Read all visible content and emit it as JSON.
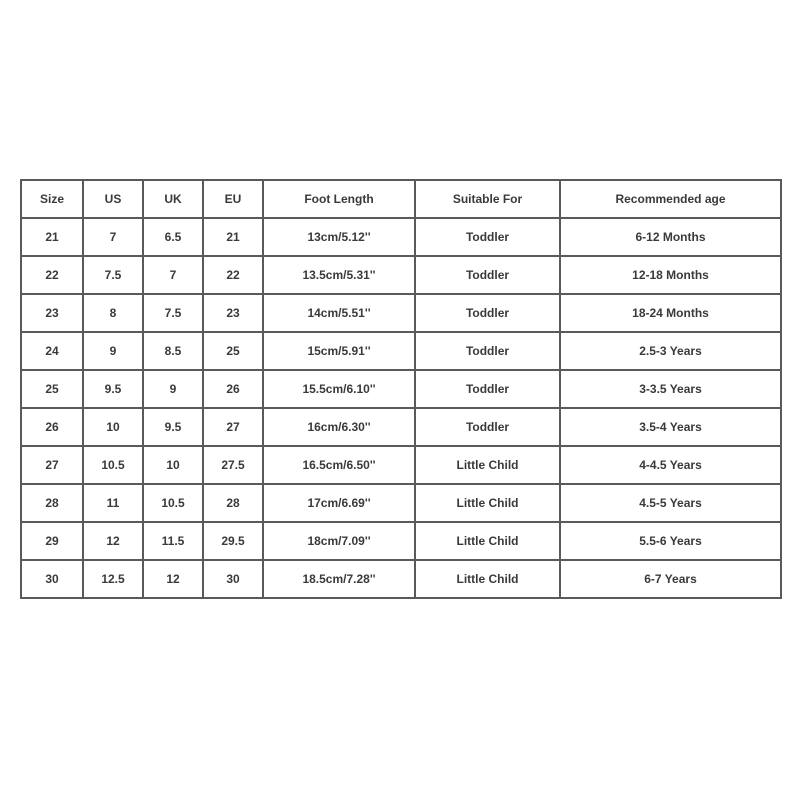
{
  "table": {
    "headers": [
      "Size",
      "US",
      "UK",
      "EU",
      "Foot Length",
      "Suitable For",
      "Recommended age"
    ],
    "rows": [
      [
        "21",
        "7",
        "6.5",
        "21",
        "13cm/5.12''",
        "Toddler",
        "6-12 Months"
      ],
      [
        "22",
        "7.5",
        "7",
        "22",
        "13.5cm/5.31''",
        "Toddler",
        "12-18 Months"
      ],
      [
        "23",
        "8",
        "7.5",
        "23",
        "14cm/5.51''",
        "Toddler",
        "18-24 Months"
      ],
      [
        "24",
        "9",
        "8.5",
        "25",
        "15cm/5.91''",
        "Toddler",
        "2.5-3 Years"
      ],
      [
        "25",
        "9.5",
        "9",
        "26",
        "15.5cm/6.10''",
        "Toddler",
        "3-3.5 Years"
      ],
      [
        "26",
        "10",
        "9.5",
        "27",
        "16cm/6.30''",
        "Toddler",
        "3.5-4 Years"
      ],
      [
        "27",
        "10.5",
        "10",
        "27.5",
        "16.5cm/6.50''",
        "Little Child",
        "4-4.5 Years"
      ],
      [
        "28",
        "11",
        "10.5",
        "28",
        "17cm/6.69''",
        "Little Child",
        "4.5-5 Years"
      ],
      [
        "29",
        "12",
        "11.5",
        "29.5",
        "18cm/7.09''",
        "Little Child",
        "5.5-6 Years"
      ],
      [
        "30",
        "12.5",
        "12",
        "30",
        "18.5cm/7.28''",
        "Little Child",
        "6-7 Years"
      ]
    ]
  }
}
